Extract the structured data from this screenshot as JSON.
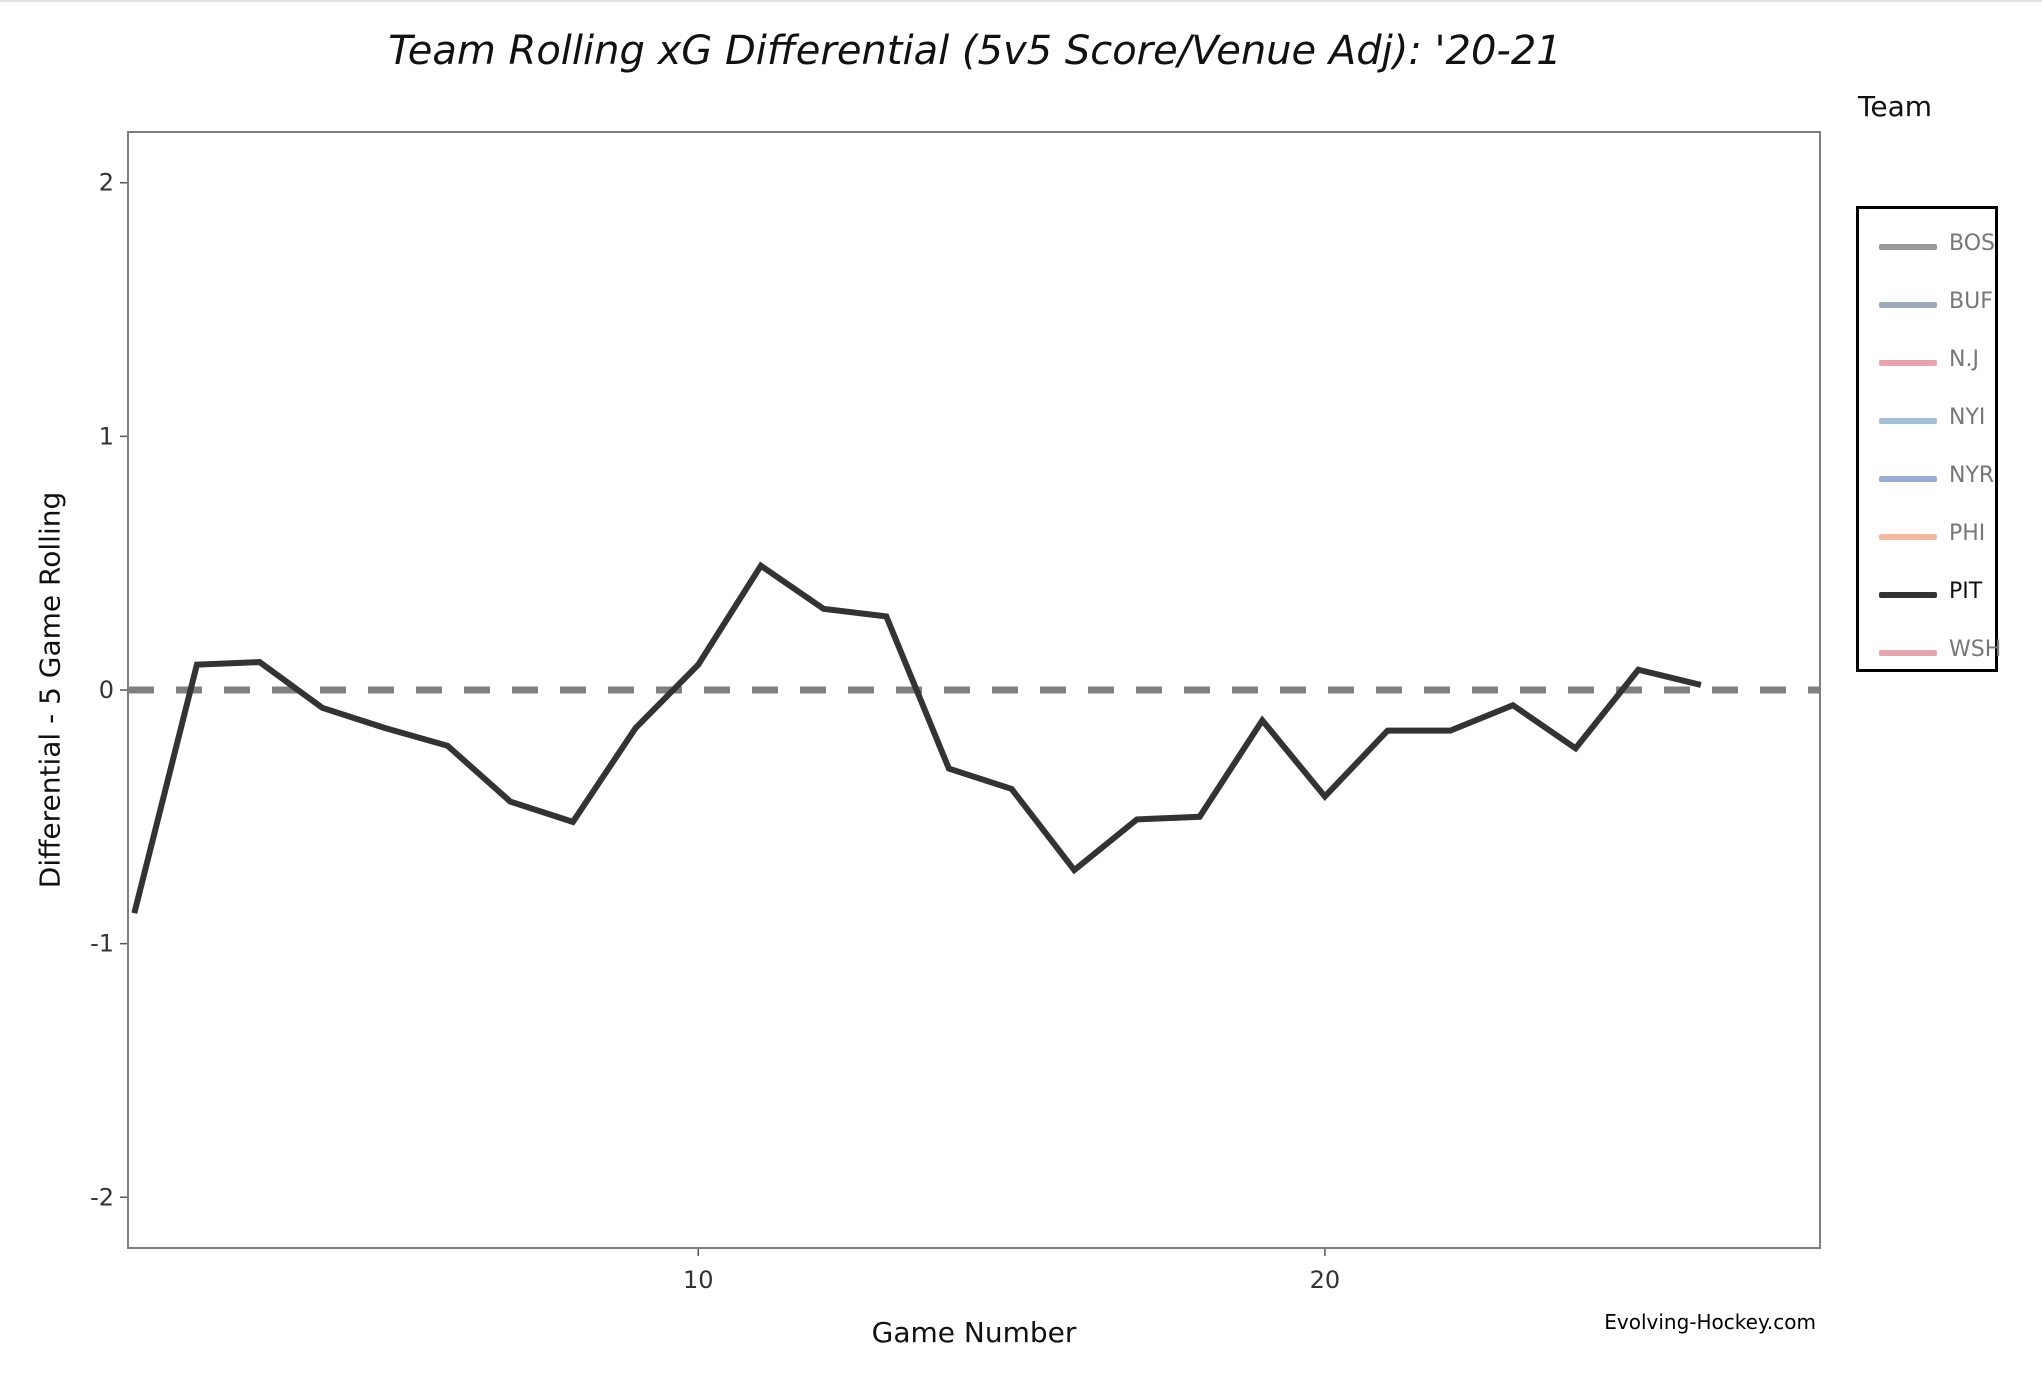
{
  "chart_data": {
    "type": "line",
    "title": "Team Rolling xG Differential (5v5 Score/Venue Adj): '20-21",
    "xlabel": "Game Number",
    "ylabel": "Differential - 5 Game Rolling",
    "xlim": [
      0.9,
      27.9
    ],
    "ylim": [
      -2.2,
      2.2
    ],
    "xticks": [
      10,
      20
    ],
    "yticks": [
      -2,
      -1,
      0,
      1,
      2
    ],
    "grid": false,
    "reference_line": {
      "y": 0,
      "style": "dashed",
      "color": "#808080"
    },
    "legend": {
      "title": "Team",
      "placement": "right",
      "entries": [
        {
          "name": "BOS",
          "color": "#999999"
        },
        {
          "name": "BUF",
          "color": "#9daab8"
        },
        {
          "name": "N.J",
          "color": "#e8a2ac"
        },
        {
          "name": "NYI",
          "color": "#a4c0d8"
        },
        {
          "name": "NYR",
          "color": "#9aadd8"
        },
        {
          "name": "PHI",
          "color": "#f6b9a0"
        },
        {
          "name": "PIT",
          "color": "#333333"
        },
        {
          "name": "WSH",
          "color": "#e4a4b0"
        }
      ]
    },
    "series": [
      {
        "name": "PIT",
        "color": "#333333",
        "x": [
          1,
          2,
          3,
          4,
          5,
          6,
          7,
          8,
          9,
          10,
          11,
          12,
          13,
          14,
          15,
          16,
          17,
          18,
          19,
          20,
          21,
          22,
          23,
          24,
          25,
          26,
          27
        ],
        "y": [
          -0.88,
          0.1,
          0.11,
          -0.07,
          -0.15,
          -0.22,
          -0.44,
          -0.52,
          -0.15,
          0.1,
          0.49,
          0.32,
          0.29,
          -0.31,
          -0.39,
          -0.71,
          -0.51,
          -0.5,
          -0.12,
          -0.42,
          -0.16,
          -0.16,
          -0.06,
          -0.23,
          0.08,
          0.02,
          null
        ]
      }
    ]
  },
  "credit": "Evolving-Hockey.com"
}
